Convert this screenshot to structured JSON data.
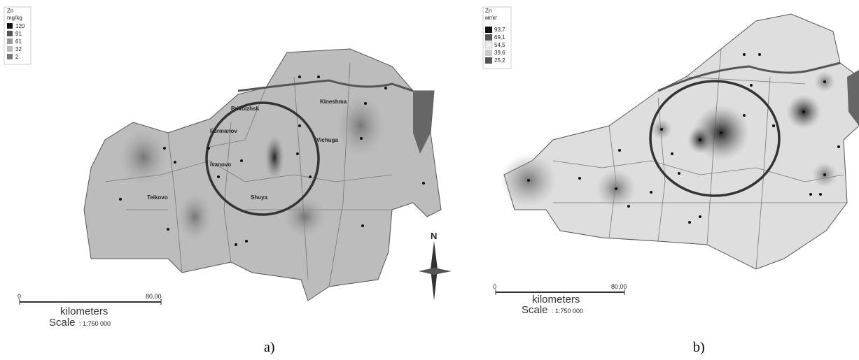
{
  "panel_a": {
    "legend": {
      "title": "Zn",
      "unit": "mg/kg",
      "labels": [
        "120",
        "91",
        "61",
        "32",
        "2"
      ]
    },
    "places": [
      "Privolzhsk",
      "Kineshma",
      "Furmanov",
      "Vichuga",
      "Ivanovo",
      "Teikovo",
      "Shuya"
    ],
    "scale": {
      "start": "0",
      "end": "80,00",
      "unit": "kilometers",
      "label": "Scale",
      "ratio": ": 1:750 000"
    },
    "north": "N",
    "caption": "a)"
  },
  "panel_b": {
    "legend": {
      "title": "Zn",
      "unit": "мг/кг",
      "labels": [
        "93,7",
        "69,1",
        "54,5",
        "39,6",
        "25,2"
      ]
    },
    "scale": {
      "start": "0",
      "end": "80,00",
      "unit": "kilometers",
      "label": "Scale",
      "ratio": ": 1:750 000"
    },
    "caption": "b)"
  }
}
